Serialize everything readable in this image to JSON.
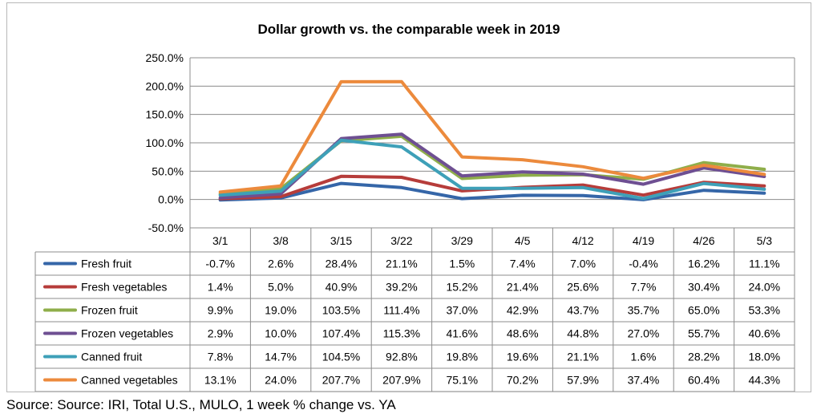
{
  "chart_data": {
    "type": "line",
    "title": "Dollar growth vs. the comparable week in 2019",
    "xlabel": "",
    "ylabel": "",
    "categories": [
      "3/1",
      "3/8",
      "3/15",
      "3/22",
      "3/29",
      "4/5",
      "4/12",
      "4/19",
      "4/26",
      "5/3"
    ],
    "ylim": [
      -50,
      250
    ],
    "yticks": [
      "-50.0%",
      "0.0%",
      "50.0%",
      "100.0%",
      "150.0%",
      "200.0%",
      "250.0%"
    ],
    "grid": true,
    "legend": "data-table-below",
    "series": [
      {
        "name": "Fresh fruit",
        "color": "#3566a8",
        "values": [
          -0.7,
          2.6,
          28.4,
          21.1,
          1.5,
          7.4,
          7.0,
          -0.4,
          16.2,
          11.1
        ],
        "labels": [
          "-0.7%",
          "2.6%",
          "28.4%",
          "21.1%",
          "1.5%",
          "7.4%",
          "7.0%",
          "-0.4%",
          "16.2%",
          "11.1%"
        ]
      },
      {
        "name": "Fresh vegetables",
        "color": "#b63c3a",
        "values": [
          1.4,
          5.0,
          40.9,
          39.2,
          15.2,
          21.4,
          25.6,
          7.7,
          30.4,
          24.0
        ],
        "labels": [
          "1.4%",
          "5.0%",
          "40.9%",
          "39.2%",
          "15.2%",
          "21.4%",
          "25.6%",
          "7.7%",
          "30.4%",
          "24.0%"
        ]
      },
      {
        "name": "Frozen fruit",
        "color": "#8fae4a",
        "values": [
          9.9,
          19.0,
          103.5,
          111.4,
          37.0,
          42.9,
          43.7,
          35.7,
          65.0,
          53.3
        ],
        "labels": [
          "9.9%",
          "19.0%",
          "103.5%",
          "111.4%",
          "37.0%",
          "42.9%",
          "43.7%",
          "35.7%",
          "65.0%",
          "53.3%"
        ]
      },
      {
        "name": "Frozen vegetables",
        "color": "#6e4f92",
        "values": [
          2.9,
          10.0,
          107.4,
          115.3,
          41.6,
          48.6,
          44.8,
          27.0,
          55.7,
          40.6
        ],
        "labels": [
          "2.9%",
          "10.0%",
          "107.4%",
          "115.3%",
          "41.6%",
          "48.6%",
          "44.8%",
          "27.0%",
          "55.7%",
          "40.6%"
        ]
      },
      {
        "name": "Canned fruit",
        "color": "#3ea0b8",
        "values": [
          7.8,
          14.7,
          104.5,
          92.8,
          19.8,
          19.6,
          21.1,
          1.6,
          28.2,
          18.0
        ],
        "labels": [
          "7.8%",
          "14.7%",
          "104.5%",
          "92.8%",
          "19.8%",
          "19.6%",
          "21.1%",
          "1.6%",
          "28.2%",
          "18.0%"
        ]
      },
      {
        "name": "Canned vegetables",
        "color": "#ec8a3c",
        "values": [
          13.1,
          24.0,
          207.7,
          207.9,
          75.1,
          70.2,
          57.9,
          37.4,
          60.4,
          44.3
        ],
        "labels": [
          "13.1%",
          "24.0%",
          "207.7%",
          "207.9%",
          "75.1%",
          "70.2%",
          "57.9%",
          "37.4%",
          "60.4%",
          "44.3%"
        ]
      }
    ]
  },
  "source_note": "Source: Source: IRI, Total U.S., MULO, 1 week % change vs. YA"
}
